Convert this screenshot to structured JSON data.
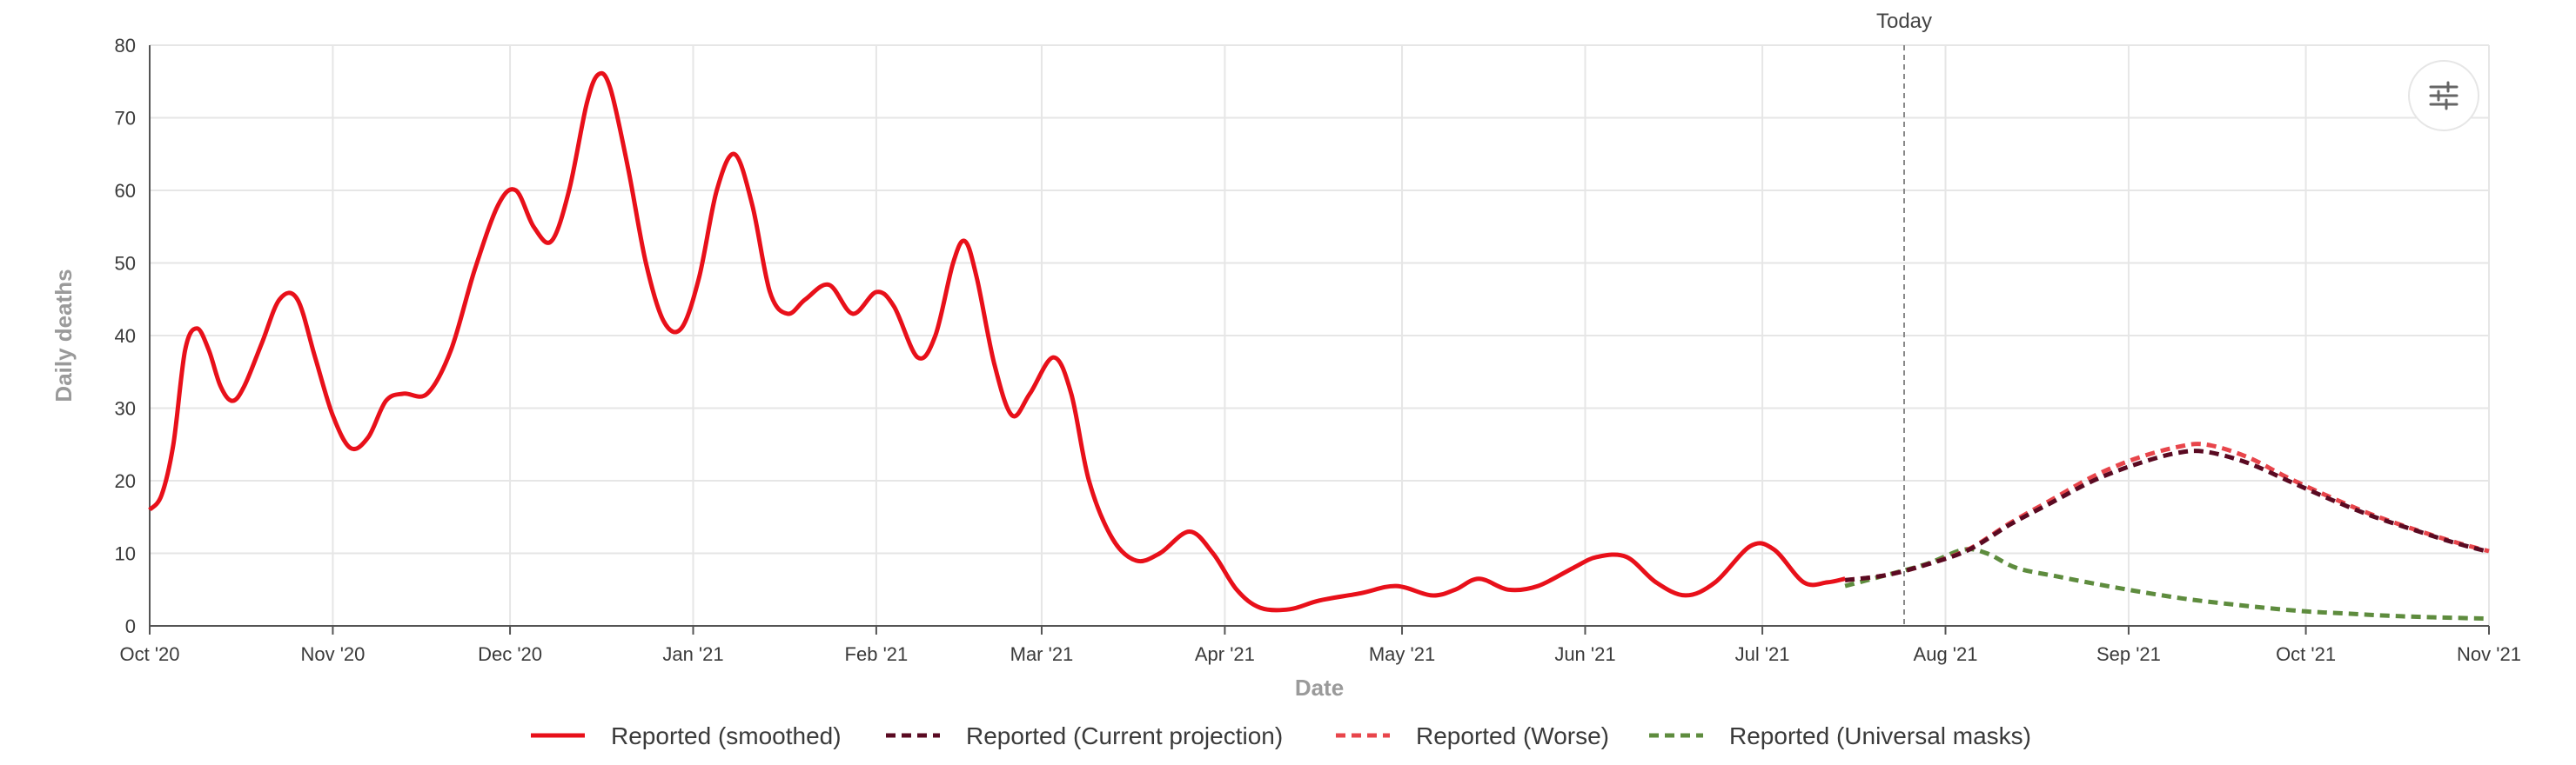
{
  "chart_data": {
    "type": "line",
    "xlabel": "Date",
    "ylabel": "Daily deaths",
    "ylim": [
      0,
      80
    ],
    "yticks": [
      0,
      10,
      20,
      30,
      40,
      50,
      60,
      70,
      80
    ],
    "xlim": [
      "2020-10-01",
      "2021-11-01"
    ],
    "xticks": [
      {
        "date": "2020-10-01",
        "label": "Oct '20"
      },
      {
        "date": "2020-11-01",
        "label": "Nov '20"
      },
      {
        "date": "2020-12-01",
        "label": "Dec '20"
      },
      {
        "date": "2021-01-01",
        "label": "Jan '21"
      },
      {
        "date": "2021-02-01",
        "label": "Feb '21"
      },
      {
        "date": "2021-03-01",
        "label": "Mar '21"
      },
      {
        "date": "2021-04-01",
        "label": "Apr '21"
      },
      {
        "date": "2021-05-01",
        "label": "May '21"
      },
      {
        "date": "2021-06-01",
        "label": "Jun '21"
      },
      {
        "date": "2021-07-01",
        "label": "Jul '21"
      },
      {
        "date": "2021-08-01",
        "label": "Aug '21"
      },
      {
        "date": "2021-09-01",
        "label": "Sep '21"
      },
      {
        "date": "2021-10-01",
        "label": "Oct '21"
      },
      {
        "date": "2021-11-01",
        "label": "Nov '21"
      }
    ],
    "grid": true,
    "today": {
      "label": "Today",
      "date": "2021-07-25"
    },
    "legend_position": "bottom-center",
    "series": [
      {
        "name": "Reported (smoothed)",
        "color": "#e8101a",
        "style": "solid",
        "points": [
          [
            "2020-10-01",
            16
          ],
          [
            "2020-10-03",
            18
          ],
          [
            "2020-10-05",
            25
          ],
          [
            "2020-10-07",
            38
          ],
          [
            "2020-10-09",
            41
          ],
          [
            "2020-10-11",
            38
          ],
          [
            "2020-10-13",
            33
          ],
          [
            "2020-10-15",
            31
          ],
          [
            "2020-10-17",
            33
          ],
          [
            "2020-10-20",
            39
          ],
          [
            "2020-10-23",
            45
          ],
          [
            "2020-10-26",
            45
          ],
          [
            "2020-10-29",
            37
          ],
          [
            "2020-11-01",
            29
          ],
          [
            "2020-11-04",
            24.5
          ],
          [
            "2020-11-07",
            26
          ],
          [
            "2020-11-10",
            31
          ],
          [
            "2020-11-13",
            32
          ],
          [
            "2020-11-17",
            32
          ],
          [
            "2020-11-21",
            38
          ],
          [
            "2020-11-25",
            49
          ],
          [
            "2020-11-29",
            58
          ],
          [
            "2020-12-02",
            60
          ],
          [
            "2020-12-05",
            55
          ],
          [
            "2020-12-08",
            53
          ],
          [
            "2020-12-11",
            60
          ],
          [
            "2020-12-14",
            72
          ],
          [
            "2020-12-16",
            76
          ],
          [
            "2020-12-18",
            74
          ],
          [
            "2020-12-21",
            63
          ],
          [
            "2020-12-24",
            50
          ],
          [
            "2020-12-27",
            42
          ],
          [
            "2020-12-30",
            41
          ],
          [
            "2021-01-02",
            48
          ],
          [
            "2021-01-05",
            60
          ],
          [
            "2021-01-08",
            65
          ],
          [
            "2021-01-11",
            58
          ],
          [
            "2021-01-14",
            46
          ],
          [
            "2021-01-17",
            43
          ],
          [
            "2021-01-20",
            45
          ],
          [
            "2021-01-24",
            47
          ],
          [
            "2021-01-28",
            43
          ],
          [
            "2021-02-01",
            46
          ],
          [
            "2021-02-04",
            44
          ],
          [
            "2021-02-08",
            37
          ],
          [
            "2021-02-11",
            40
          ],
          [
            "2021-02-14",
            50
          ],
          [
            "2021-02-16",
            53
          ],
          [
            "2021-02-18",
            48
          ],
          [
            "2021-02-21",
            36
          ],
          [
            "2021-02-24",
            29
          ],
          [
            "2021-02-27",
            32
          ],
          [
            "2021-03-03",
            37
          ],
          [
            "2021-03-06",
            32
          ],
          [
            "2021-03-09",
            20
          ],
          [
            "2021-03-13",
            12
          ],
          [
            "2021-03-17",
            9
          ],
          [
            "2021-03-21",
            10
          ],
          [
            "2021-03-26",
            13
          ],
          [
            "2021-03-30",
            10
          ],
          [
            "2021-04-03",
            5
          ],
          [
            "2021-04-07",
            2.5
          ],
          [
            "2021-04-12",
            2.3
          ],
          [
            "2021-04-17",
            3.5
          ],
          [
            "2021-04-24",
            4.5
          ],
          [
            "2021-04-30",
            5.5
          ],
          [
            "2021-05-06",
            4.2
          ],
          [
            "2021-05-10",
            5
          ],
          [
            "2021-05-14",
            6.5
          ],
          [
            "2021-05-19",
            5
          ],
          [
            "2021-05-24",
            5.5
          ],
          [
            "2021-05-30",
            8
          ],
          [
            "2021-06-03",
            9.5
          ],
          [
            "2021-06-08",
            9.5
          ],
          [
            "2021-06-13",
            6
          ],
          [
            "2021-06-18",
            4.2
          ],
          [
            "2021-06-23",
            6
          ],
          [
            "2021-06-29",
            11
          ],
          [
            "2021-07-03",
            10.5
          ],
          [
            "2021-07-08",
            6
          ],
          [
            "2021-07-12",
            6
          ],
          [
            "2021-07-15",
            6.5
          ]
        ]
      },
      {
        "name": "Reported (Current projection)",
        "color": "#5a0a22",
        "style": "dashed",
        "points": [
          [
            "2021-07-15",
            6.3
          ],
          [
            "2021-07-22",
            7
          ],
          [
            "2021-07-29",
            8.5
          ],
          [
            "2021-08-05",
            10.5
          ],
          [
            "2021-08-12",
            14
          ],
          [
            "2021-08-19",
            17
          ],
          [
            "2021-08-26",
            20
          ],
          [
            "2021-09-02",
            22.2
          ],
          [
            "2021-09-09",
            23.8
          ],
          [
            "2021-09-14",
            24
          ],
          [
            "2021-09-21",
            22.5
          ],
          [
            "2021-09-28",
            20
          ],
          [
            "2021-10-05",
            17.5
          ],
          [
            "2021-10-12",
            15.2
          ],
          [
            "2021-10-19",
            13.3
          ],
          [
            "2021-10-26",
            11.5
          ],
          [
            "2021-11-01",
            10.2
          ]
        ]
      },
      {
        "name": "Reported (Worse)",
        "color": "#e8454b",
        "style": "dashed",
        "points": [
          [
            "2021-07-15",
            6.3
          ],
          [
            "2021-07-22",
            7
          ],
          [
            "2021-07-29",
            8.5
          ],
          [
            "2021-08-05",
            10.6
          ],
          [
            "2021-08-12",
            14.2
          ],
          [
            "2021-08-19",
            17.4
          ],
          [
            "2021-08-26",
            20.6
          ],
          [
            "2021-09-02",
            23
          ],
          [
            "2021-09-09",
            24.6
          ],
          [
            "2021-09-14",
            25
          ],
          [
            "2021-09-21",
            23.3
          ],
          [
            "2021-09-28",
            20.4
          ],
          [
            "2021-10-05",
            17.8
          ],
          [
            "2021-10-12",
            15.4
          ],
          [
            "2021-10-19",
            13.4
          ],
          [
            "2021-10-26",
            11.6
          ],
          [
            "2021-11-01",
            10.3
          ]
        ]
      },
      {
        "name": "Reported (Universal masks)",
        "color": "#5e8c3e",
        "style": "dashed",
        "points": [
          [
            "2021-07-15",
            5.5
          ],
          [
            "2021-07-22",
            7
          ],
          [
            "2021-07-29",
            8.6
          ],
          [
            "2021-08-04",
            10.5
          ],
          [
            "2021-08-08",
            10
          ],
          [
            "2021-08-13",
            8
          ],
          [
            "2021-08-20",
            6.8
          ],
          [
            "2021-08-27",
            5.7
          ],
          [
            "2021-09-03",
            4.7
          ],
          [
            "2021-09-10",
            3.8
          ],
          [
            "2021-09-17",
            3.1
          ],
          [
            "2021-09-24",
            2.5
          ],
          [
            "2021-10-01",
            2
          ],
          [
            "2021-10-08",
            1.7
          ],
          [
            "2021-10-15",
            1.4
          ],
          [
            "2021-10-22",
            1.2
          ],
          [
            "2021-11-01",
            1
          ]
        ]
      }
    ]
  }
}
